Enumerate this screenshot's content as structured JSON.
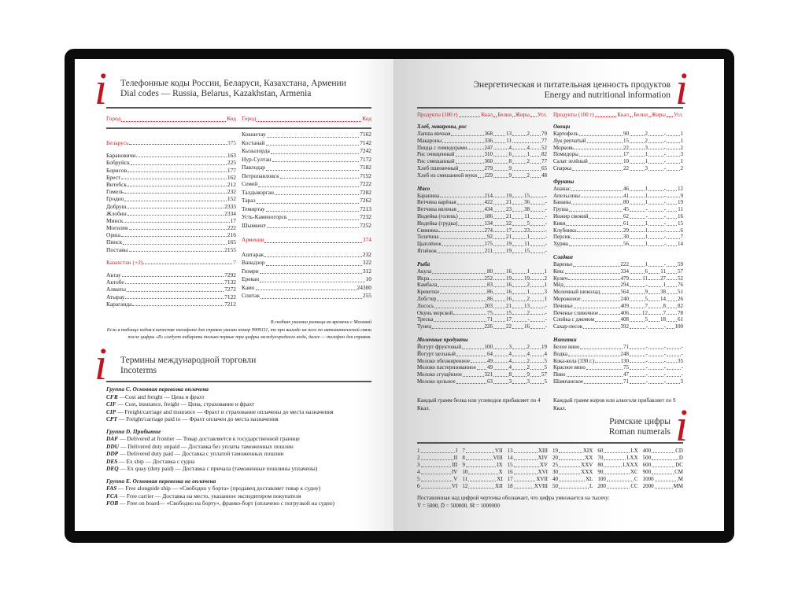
{
  "colors": {
    "accent": "#c0141e",
    "cover": "#0c0c0c"
  },
  "dial": {
    "logo": "i",
    "title_ru": "Телефонные коды России, Беларуси, Казахстана, Армении",
    "title_en": "Dial codes — Russia, Belarus, Kazakhstan, Armenia",
    "header": {
      "city": "Город",
      "code": "Код"
    },
    "left": [
      {
        "country": true,
        "name": "Беларусь",
        "code": "375"
      },
      {
        "gap": true
      },
      {
        "name": "Барановичи",
        "code": "163"
      },
      {
        "name": "Бобруйск",
        "code": "225"
      },
      {
        "name": "Борисов",
        "code": "177"
      },
      {
        "name": "Брест",
        "code": "162"
      },
      {
        "name": "Витебск",
        "code": "212"
      },
      {
        "name": "Гомель",
        "code": "232"
      },
      {
        "name": "Гродно",
        "code": "152"
      },
      {
        "name": "Добруш",
        "code": "2333"
      },
      {
        "name": "Жлобин",
        "code": "2334"
      },
      {
        "name": "Минск",
        "code": "17"
      },
      {
        "name": "Могилев",
        "code": "222"
      },
      {
        "name": "Орша",
        "code": "216"
      },
      {
        "name": "Пинск",
        "code": "165"
      },
      {
        "name": "Поставы",
        "code": "2155"
      },
      {
        "gap": true
      },
      {
        "country": true,
        "name": "Казахстан (+2)",
        "code": "7"
      },
      {
        "gap": true
      },
      {
        "name": "Актау",
        "code": "7292"
      },
      {
        "name": "Актобе",
        "code": "7132"
      },
      {
        "name": "Алматы",
        "code": "7272"
      },
      {
        "name": "Атырау",
        "code": "7122"
      },
      {
        "name": "Караганда",
        "code": "7212"
      }
    ],
    "right": [
      {
        "name": "Кокшетау",
        "code": "7162"
      },
      {
        "name": "Костанай",
        "code": "7142"
      },
      {
        "name": "Кызылорда",
        "code": "7242"
      },
      {
        "name": "Нур-Султан",
        "code": "7172"
      },
      {
        "name": "Павлодар",
        "code": "7182"
      },
      {
        "name": "Петропавловск",
        "code": "7152"
      },
      {
        "name": "Семей",
        "code": "7222"
      },
      {
        "name": "Талдыкорган",
        "code": "7282"
      },
      {
        "name": "Тараз",
        "code": "7262"
      },
      {
        "name": "Темиртау",
        "code": "7213"
      },
      {
        "name": "Усть-Каменогорск",
        "code": "7232"
      },
      {
        "name": "Шымкент",
        "code": "7252"
      },
      {
        "gap": true
      },
      {
        "country": true,
        "name": "Армения",
        "code": "374"
      },
      {
        "gap": true
      },
      {
        "name": "Аштарак",
        "code": "232"
      },
      {
        "name": "Ванадзор",
        "code": "322"
      },
      {
        "name": "Гюмри",
        "code": "312"
      },
      {
        "name": "Ереван",
        "code": "10"
      },
      {
        "name": "Камо",
        "code": "24300"
      },
      {
        "name": "Спитак",
        "code": "255"
      }
    ],
    "footnote_1": "В скобках указана разница во времени с Москвой",
    "footnote_2": "Если в таблице кодов в качестве телефона для справок указан номер 9909111, то при выходе на него по автоматической связи после цифры «8» следует набирать только первые три цифры междугородного кода, далее — телефон для справок."
  },
  "incoterms": {
    "logo": "i",
    "title_ru": "Термины международной торговли",
    "title_en": "Incoterms",
    "groups": [
      {
        "title": "Группа С. Основная перевозка оплачена",
        "items": [
          [
            "CFR",
            "—Cost and freight — Цена и фрахт"
          ],
          [
            "CIF",
            "— Cost, insurance, freight — Цена, страхование и фрахт"
          ],
          [
            "CIP",
            "— Freight/carriage and insurance — Фрахт и страхование оплачены до места назначения"
          ],
          [
            "CPT",
            "— Freight/carriage paid to — Фрахт оплачен до места назначения"
          ]
        ]
      },
      {
        "title": "Группа D. Прибытие",
        "items": [
          [
            "DAF",
            "— Delivered at frontier — Товар доставляется к государственной границе"
          ],
          [
            "DDU",
            "— Delivered duty unpaid — Доставка без уплаты таможенных пошлин"
          ],
          [
            "DDP",
            "— Delivered duty paid — Доставка с уплатой таможенных пошлин"
          ],
          [
            "DES",
            "— Ex ship — Доставка с судна"
          ],
          [
            "DEQ",
            "— Ex quay (duty paid) — Доставка с причала (таможенные пошлины уплачены)"
          ]
        ]
      },
      {
        "title": "Группа E. Основная перевозка не оплачена",
        "items": [
          [
            "FAS",
            "— Free alongside ship — «Свободно у борта» (продавец доставляет товар к судну)"
          ],
          [
            "FCA",
            "— Free carrier — Доставка на место, указанное экспедитором покупателя"
          ],
          [
            "FOB",
            "— Free on board— «Свободно на борту», франко-борт (оплачено с погрузкой на судно)"
          ]
        ]
      }
    ]
  },
  "nutrition": {
    "logo": "i",
    "title_ru": "Энергетическая и питательная ценность продуктов",
    "title_en": "Energy and nutritional information",
    "header": {
      "product": "Продукты (100 г)",
      "kcal": "Ккал",
      "protein": "Белки",
      "fat": "Жиры",
      "carbs": "Угл."
    },
    "columns": [
      [
        {
          "title": "Хлеб, макароны, рис",
          "items": [
            [
              "Лапша яичная",
              "368",
              "13",
              "2",
              "79"
            ],
            [
              "Макароны",
              "336",
              "11",
              "",
              "77"
            ],
            [
              "Пицца с помидорами",
              "247",
              "4",
              "4",
              "52"
            ],
            [
              "Рис очищенный",
              "310",
              "6",
              "1",
              "82"
            ],
            [
              "Рис смешанный",
              "360",
              "8",
              "2",
              "77"
            ],
            [
              "Хлеб пшеничный",
              "279",
              "9",
              "",
              "65"
            ],
            [
              "Хлеб из смешанной муки",
              "229",
              "9",
              "2",
              "48"
            ]
          ]
        },
        {
          "title": "Мясо",
          "items": [
            [
              "Баранина",
              "214",
              "19",
              "15",
              "-"
            ],
            [
              "Ветчина варёная",
              "422",
              "21",
              "36",
              "-"
            ],
            [
              "Ветчина вяленая",
              "434",
              "23",
              "38",
              "-"
            ],
            [
              "Индейка (голень)",
              "186",
              "21",
              "11",
              "-"
            ],
            [
              "Индейка (грудка)",
              "134",
              "22",
              "5",
              "-"
            ],
            [
              "Свинина",
              "274",
              "17",
              "23",
              "-"
            ],
            [
              "Телятина",
              "92",
              "21",
              "1",
              "-"
            ],
            [
              "Цыплёнок",
              "175",
              "19",
              "11",
              "-"
            ],
            [
              "Ягнёнок",
              "211",
              "19",
              "15",
              "-"
            ]
          ]
        },
        {
          "title": "Рыба",
          "items": [
            [
              "Акула",
              "80",
              "16",
              "1",
              "1"
            ],
            [
              "Икра",
              "252",
              "19",
              "19",
              "2"
            ],
            [
              "Камбала",
              "83",
              "16",
              "2",
              "1"
            ],
            [
              "Креветки",
              "86",
              "16",
              "1",
              "3"
            ],
            [
              "Лобстер",
              "86",
              "16",
              "2",
              "1"
            ],
            [
              "Лосось",
              "203",
              "21",
              "13",
              "-"
            ],
            [
              "Окунь морской",
              "75",
              "15",
              "2",
              "-"
            ],
            [
              "Треска",
              "71",
              "17",
              "-",
              "-"
            ],
            [
              "Тунец",
              "226",
              "22",
              "16",
              "-"
            ]
          ]
        },
        {
          "title": "Молочные продукты",
          "items": [
            [
              "Йогурт фруктовый",
              "100",
              "3",
              "2",
              "19"
            ],
            [
              "Йогурт цельный",
              "64",
              "4",
              "4",
              "4"
            ],
            [
              "Молоко обезжиренное",
              "49",
              "4",
              "2",
              "5"
            ],
            [
              "Молоко пастеризованное",
              "49",
              "4",
              "2",
              "5"
            ],
            [
              "Молоко сгущённое",
              "321",
              "8",
              "9",
              "57"
            ],
            [
              "Молоко цельное",
              "63",
              "3",
              "3",
              "5"
            ]
          ]
        }
      ],
      [
        {
          "title": "Овощи",
          "items": [
            [
              "Картофель",
              "90",
              "2",
              "-",
              "1"
            ],
            [
              "Лук репчатый",
              "15",
              "2",
              "-",
              "1"
            ],
            [
              "Морковь",
              "22",
              "3",
              "-",
              "2"
            ],
            [
              "Помидоры",
              "17",
              "1",
              "-",
              "3"
            ],
            [
              "Салат зелёный",
              "10",
              "1",
              "-",
              "1"
            ],
            [
              "Спаржа",
              "22",
              "3",
              "-",
              "2"
            ]
          ]
        },
        {
          "title": "Фрукты",
          "items": [
            [
              "Ананас",
              "46",
              "1",
              "-",
              "12"
            ],
            [
              "Апельсины",
              "41",
              "1",
              "-",
              "9"
            ],
            [
              "Бананы",
              "80",
              "1",
              "-",
              "19"
            ],
            [
              "Груша",
              "45",
              "-",
              "-",
              "11"
            ],
            [
              "Инжир свежий",
              "62",
              "-",
              "-",
              "16"
            ],
            [
              "Киви",
              "61",
              "1",
              "-",
              "15"
            ],
            [
              "Клубника",
              "29",
              "1",
              "-",
              "6"
            ],
            [
              "Персик",
              "30",
              "1",
              "-",
              "7"
            ],
            [
              "Хурма",
              "56",
              "1",
              "-",
              "14"
            ]
          ]
        },
        {
          "title": "Сладкое",
          "items": [
            [
              "Варенье",
              "222",
              "1",
              "-",
              "59"
            ],
            [
              "Кекс",
              "334",
              "6",
              "11",
              "57"
            ],
            [
              "Кулич",
              "479",
              "11",
              "27",
              "52"
            ],
            [
              "Мёд",
              "294",
              "-",
              "1",
              "76"
            ],
            [
              "Молочный шоколад",
              "564",
              "9",
              "38",
              "51"
            ],
            [
              "Мороженое",
              "240",
              "5",
              "14",
              "26"
            ],
            [
              "Печенье",
              "409",
              "7",
              "8",
              "82"
            ],
            [
              "Печенье сливочное",
              "406",
              "12",
              "7",
              "78"
            ],
            [
              "Слойка с джемом",
              "408",
              "5",
              "18",
              "61"
            ],
            [
              "Сахар-песок",
              "392",
              "-",
              "-",
              "100"
            ]
          ]
        },
        {
          "title": "Напитки",
          "items": [
            [
              "Белое вино",
              "71",
              "-",
              "-",
              "-"
            ],
            [
              "Водка",
              "248",
              "-",
              "-",
              "-"
            ],
            [
              "Кока-кола (330 г.)",
              "130",
              "-",
              "-",
              "35"
            ],
            [
              "Красное вино",
              "75",
              "-",
              "-",
              "-"
            ],
            [
              "Пиво",
              "47",
              "-",
              "-",
              "-"
            ],
            [
              "Шампанское",
              "71",
              "-",
              "-",
              "3"
            ]
          ]
        }
      ]
    ],
    "notes": [
      "Каждый грамм белка или углеводов прибавляет по 4 Ккал.",
      "Каждый грамм жиров или алкоголя прибавляет по 9 Ккал."
    ]
  },
  "roman": {
    "logo": "i",
    "title_ru": "Римские цифры",
    "title_en": "Roman numerals",
    "columns": [
      [
        [
          "1",
          "I"
        ],
        [
          "2",
          "II"
        ],
        [
          "3",
          "III"
        ],
        [
          "4",
          "IV"
        ],
        [
          "5",
          "V"
        ],
        [
          "6",
          "VI"
        ]
      ],
      [
        [
          "7",
          "VII"
        ],
        [
          "8",
          "VIII"
        ],
        [
          "9",
          "IX"
        ],
        [
          "10",
          "X"
        ],
        [
          "11",
          "XI"
        ],
        [
          "12",
          "XII"
        ]
      ],
      [
        [
          "13",
          "XIII"
        ],
        [
          "14",
          "XIV"
        ],
        [
          "15",
          "XV"
        ],
        [
          "16",
          "XVI"
        ],
        [
          "17",
          "XVII"
        ],
        [
          "18",
          "XVIII"
        ]
      ],
      [
        [
          "19",
          "XIX"
        ],
        [
          "20",
          "XX"
        ],
        [
          "25",
          "XXV"
        ],
        [
          "30",
          "XXX"
        ],
        [
          "40",
          "XL"
        ],
        [
          "50",
          "L"
        ]
      ],
      [
        [
          "60",
          "LX"
        ],
        [
          "70",
          "LXX"
        ],
        [
          "80",
          "LXXX"
        ],
        [
          "90",
          "XC"
        ],
        [
          "100",
          "C"
        ],
        [
          "200",
          "CC"
        ]
      ],
      [
        [
          "400",
          "CD"
        ],
        [
          "500",
          "D"
        ],
        [
          "600",
          "DC"
        ],
        [
          "900",
          "CM"
        ],
        [
          "1000",
          "M"
        ],
        [
          "2000",
          "MM"
        ]
      ]
    ],
    "note_1": "Поставленная над цифрой черточка обозначает, что цифра умножается на тысячу:",
    "note_2": "V̄ = 5000, D̄ = 500000, M̄ = 1000000"
  }
}
